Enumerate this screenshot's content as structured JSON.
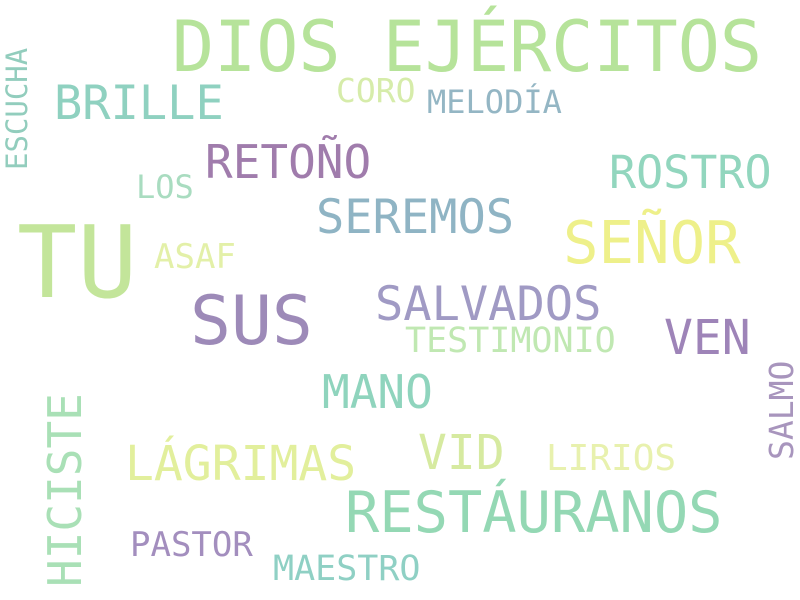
{
  "words": [
    {
      "text": "DIOS EJÉRCITOS",
      "color": "#b6e39a"
    },
    {
      "text": "ESCUCHA",
      "color": "#92cdbd"
    },
    {
      "text": "BRILLE",
      "color": "#8fd1c0"
    },
    {
      "text": "CORO",
      "color": "#d6ecaa"
    },
    {
      "text": "MELODÍA",
      "color": "#94b6c4"
    },
    {
      "text": "RETOÑO",
      "color": "#a07cac"
    },
    {
      "text": "ROSTRO",
      "color": "#92d6be"
    },
    {
      "text": "LOS",
      "color": "#a9dcc0"
    },
    {
      "text": "SEREMOS",
      "color": "#8fb4c4"
    },
    {
      "text": "TU",
      "color": "#c3e59a"
    },
    {
      "text": "SEÑOR",
      "color": "#eef08a"
    },
    {
      "text": "ASAF",
      "color": "#e3f0a8"
    },
    {
      "text": "SUS",
      "color": "#9d8ab8"
    },
    {
      "text": "SALVADOS",
      "color": "#a09ac4"
    },
    {
      "text": "TESTIMONIO",
      "color": "#c0e8b2"
    },
    {
      "text": "VEN",
      "color": "#9e84b8"
    },
    {
      "text": "HICISTE",
      "color": "#a9e0b6"
    },
    {
      "text": "SALMO",
      "color": "#a895bd"
    },
    {
      "text": "MANO",
      "color": "#8fd4bd"
    },
    {
      "text": "LÁGRIMAS",
      "color": "#e2ef9c"
    },
    {
      "text": "VID",
      "color": "#d6eaa0"
    },
    {
      "text": "LIRIOS",
      "color": "#e8f1ae"
    },
    {
      "text": "RESTÁURANOS",
      "color": "#94d8b4"
    },
    {
      "text": "PASTOR",
      "color": "#a38ebe"
    },
    {
      "text": "MAESTRO",
      "color": "#8fd0c4"
    }
  ]
}
